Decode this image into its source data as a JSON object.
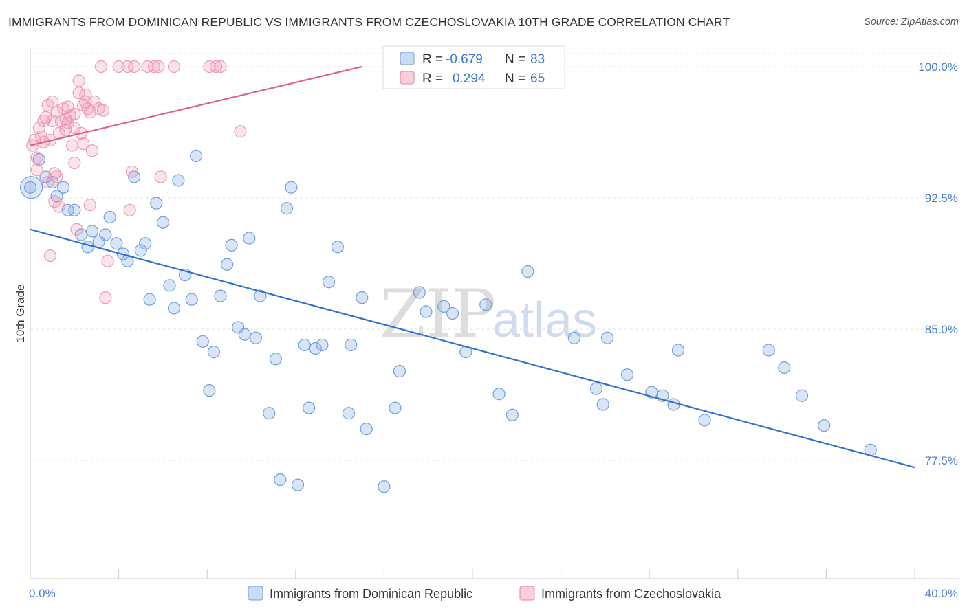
{
  "header": {
    "title": "IMMIGRANTS FROM DOMINICAN REPUBLIC VS IMMIGRANTS FROM CZECHOSLOVAKIA 10TH GRADE CORRELATION CHART",
    "source": "Source: ZipAtlas.com"
  },
  "watermark": {
    "zip": "ZIP",
    "atlas": "atlas"
  },
  "stats": [
    {
      "r_label": "R =",
      "r_value": "-0.679",
      "n_label": "N =",
      "n_value": "83",
      "color": "#6fa0e0"
    },
    {
      "r_label": "R =",
      "r_value": "0.294",
      "n_label": "N =",
      "n_value": "65",
      "color": "#ee7fa2"
    }
  ],
  "chart_data": {
    "type": "scatter",
    "xlabel": "",
    "ylabel": "10th Grade",
    "xlim": [
      0,
      40
    ],
    "ylim": [
      71,
      101.5
    ],
    "x_tick_labels": [
      "0.0%",
      "40.0%"
    ],
    "y_ticks": [
      77.5,
      85.0,
      92.5,
      100.0
    ],
    "y_tick_labels": [
      "77.5%",
      "85.0%",
      "92.5%",
      "100.0%"
    ],
    "grid": true,
    "legend_position": "bottom",
    "series": [
      {
        "name": "Immigrants from Dominican Republic",
        "color": "#6fa0e0",
        "trend": {
          "x": [
            0,
            40
          ],
          "y": [
            90.7,
            77.1
          ]
        },
        "points": [
          [
            0.0,
            93.1
          ],
          [
            0.4,
            94.7
          ],
          [
            0.7,
            93.7
          ],
          [
            1.0,
            93.4
          ],
          [
            1.2,
            92.6
          ],
          [
            1.5,
            93.1
          ],
          [
            1.7,
            91.8
          ],
          [
            2.0,
            91.8
          ],
          [
            2.3,
            90.4
          ],
          [
            2.6,
            89.7
          ],
          [
            2.8,
            90.6
          ],
          [
            3.1,
            90.0
          ],
          [
            3.4,
            90.4
          ],
          [
            3.6,
            91.4
          ],
          [
            3.9,
            89.9
          ],
          [
            4.2,
            89.3
          ],
          [
            4.4,
            88.9
          ],
          [
            4.7,
            93.7
          ],
          [
            5.0,
            89.5
          ],
          [
            5.2,
            89.9
          ],
          [
            5.4,
            86.7
          ],
          [
            5.7,
            92.2
          ],
          [
            6.0,
            91.1
          ],
          [
            6.3,
            87.5
          ],
          [
            6.5,
            86.2
          ],
          [
            6.7,
            93.5
          ],
          [
            7.0,
            88.1
          ],
          [
            7.3,
            86.7
          ],
          [
            7.5,
            94.9
          ],
          [
            7.8,
            84.3
          ],
          [
            8.1,
            81.5
          ],
          [
            8.3,
            83.7
          ],
          [
            8.6,
            86.9
          ],
          [
            8.9,
            88.7
          ],
          [
            9.1,
            89.8
          ],
          [
            9.4,
            85.1
          ],
          [
            9.7,
            84.7
          ],
          [
            9.9,
            90.2
          ],
          [
            10.2,
            84.5
          ],
          [
            10.4,
            86.9
          ],
          [
            10.8,
            80.2
          ],
          [
            11.1,
            83.3
          ],
          [
            11.3,
            76.4
          ],
          [
            11.6,
            91.9
          ],
          [
            11.8,
            93.1
          ],
          [
            12.1,
            76.1
          ],
          [
            12.4,
            84.1
          ],
          [
            12.6,
            80.5
          ],
          [
            12.9,
            83.9
          ],
          [
            13.2,
            84.1
          ],
          [
            13.5,
            87.7
          ],
          [
            13.9,
            89.7
          ],
          [
            14.4,
            80.2
          ],
          [
            14.5,
            84.1
          ],
          [
            15.0,
            86.8
          ],
          [
            15.2,
            79.3
          ],
          [
            16.0,
            76.0
          ],
          [
            16.5,
            80.5
          ],
          [
            16.7,
            82.6
          ],
          [
            17.6,
            87.1
          ],
          [
            17.9,
            86.0
          ],
          [
            18.7,
            86.3
          ],
          [
            19.1,
            85.9
          ],
          [
            19.7,
            83.7
          ],
          [
            20.6,
            86.4
          ],
          [
            21.2,
            81.3
          ],
          [
            21.8,
            80.1
          ],
          [
            22.5,
            88.3
          ],
          [
            24.6,
            84.5
          ],
          [
            25.6,
            81.6
          ],
          [
            25.9,
            80.7
          ],
          [
            26.1,
            84.5
          ],
          [
            27.0,
            82.4
          ],
          [
            28.1,
            81.4
          ],
          [
            28.6,
            81.2
          ],
          [
            29.1,
            80.7
          ],
          [
            29.3,
            83.8
          ],
          [
            30.5,
            79.8
          ],
          [
            33.4,
            83.8
          ],
          [
            34.1,
            82.8
          ],
          [
            34.9,
            81.2
          ],
          [
            35.9,
            79.5
          ],
          [
            38.0,
            78.1
          ]
        ]
      },
      {
        "name": "Immigrants from Czechoslovakia",
        "color": "#ee7fa2",
        "trend": {
          "x": [
            0,
            15
          ],
          "y": [
            95.5,
            100.0
          ]
        },
        "points": [
          [
            0.1,
            95.5
          ],
          [
            0.2,
            95.8
          ],
          [
            0.3,
            94.8
          ],
          [
            0.4,
            96.5
          ],
          [
            0.5,
            96.0
          ],
          [
            0.6,
            96.9
          ],
          [
            0.6,
            95.7
          ],
          [
            0.7,
            97.1
          ],
          [
            0.8,
            97.8
          ],
          [
            0.9,
            89.2
          ],
          [
            0.9,
            95.8
          ],
          [
            1.0,
            98.0
          ],
          [
            1.0,
            96.9
          ],
          [
            1.1,
            93.9
          ],
          [
            1.2,
            97.4
          ],
          [
            1.3,
            92.0
          ],
          [
            1.3,
            96.2
          ],
          [
            1.4,
            96.9
          ],
          [
            1.5,
            97.6
          ],
          [
            1.6,
            97.0
          ],
          [
            1.6,
            96.4
          ],
          [
            1.7,
            97.7
          ],
          [
            1.8,
            97.2
          ],
          [
            1.9,
            95.5
          ],
          [
            2.0,
            94.5
          ],
          [
            2.0,
            96.5
          ],
          [
            2.1,
            90.7
          ],
          [
            2.2,
            98.5
          ],
          [
            2.2,
            99.2
          ],
          [
            2.3,
            96.2
          ],
          [
            2.4,
            97.8
          ],
          [
            2.4,
            95.6
          ],
          [
            2.5,
            98.0
          ],
          [
            2.5,
            98.4
          ],
          [
            2.6,
            97.6
          ],
          [
            2.7,
            97.4
          ],
          [
            2.7,
            92.1
          ],
          [
            2.8,
            95.2
          ],
          [
            2.9,
            98.0
          ],
          [
            3.1,
            97.6
          ],
          [
            3.2,
            100.0
          ],
          [
            3.3,
            97.5
          ],
          [
            3.4,
            86.8
          ],
          [
            3.5,
            88.9
          ],
          [
            4.0,
            100.0
          ],
          [
            4.4,
            100.0
          ],
          [
            4.5,
            91.8
          ],
          [
            4.6,
            94.0
          ],
          [
            4.7,
            100.0
          ],
          [
            5.3,
            100.0
          ],
          [
            5.6,
            100.0
          ],
          [
            5.8,
            100.0
          ],
          [
            5.9,
            93.7
          ],
          [
            6.5,
            100.0
          ],
          [
            8.1,
            100.0
          ],
          [
            8.4,
            100.0
          ],
          [
            8.6,
            100.0
          ],
          [
            9.5,
            96.3
          ],
          [
            18.1,
            100.0
          ],
          [
            1.2,
            93.7
          ],
          [
            0.8,
            93.4
          ],
          [
            1.1,
            92.3
          ],
          [
            0.3,
            94.1
          ],
          [
            2.0,
            97.3
          ],
          [
            1.7,
            96.8
          ]
        ]
      }
    ]
  },
  "legend": {
    "items": [
      {
        "label": "Immigrants from Dominican Republic",
        "color": "#6fa0e0"
      },
      {
        "label": "Immigrants from Czechoslovakia",
        "color": "#ee7fa2"
      }
    ]
  }
}
